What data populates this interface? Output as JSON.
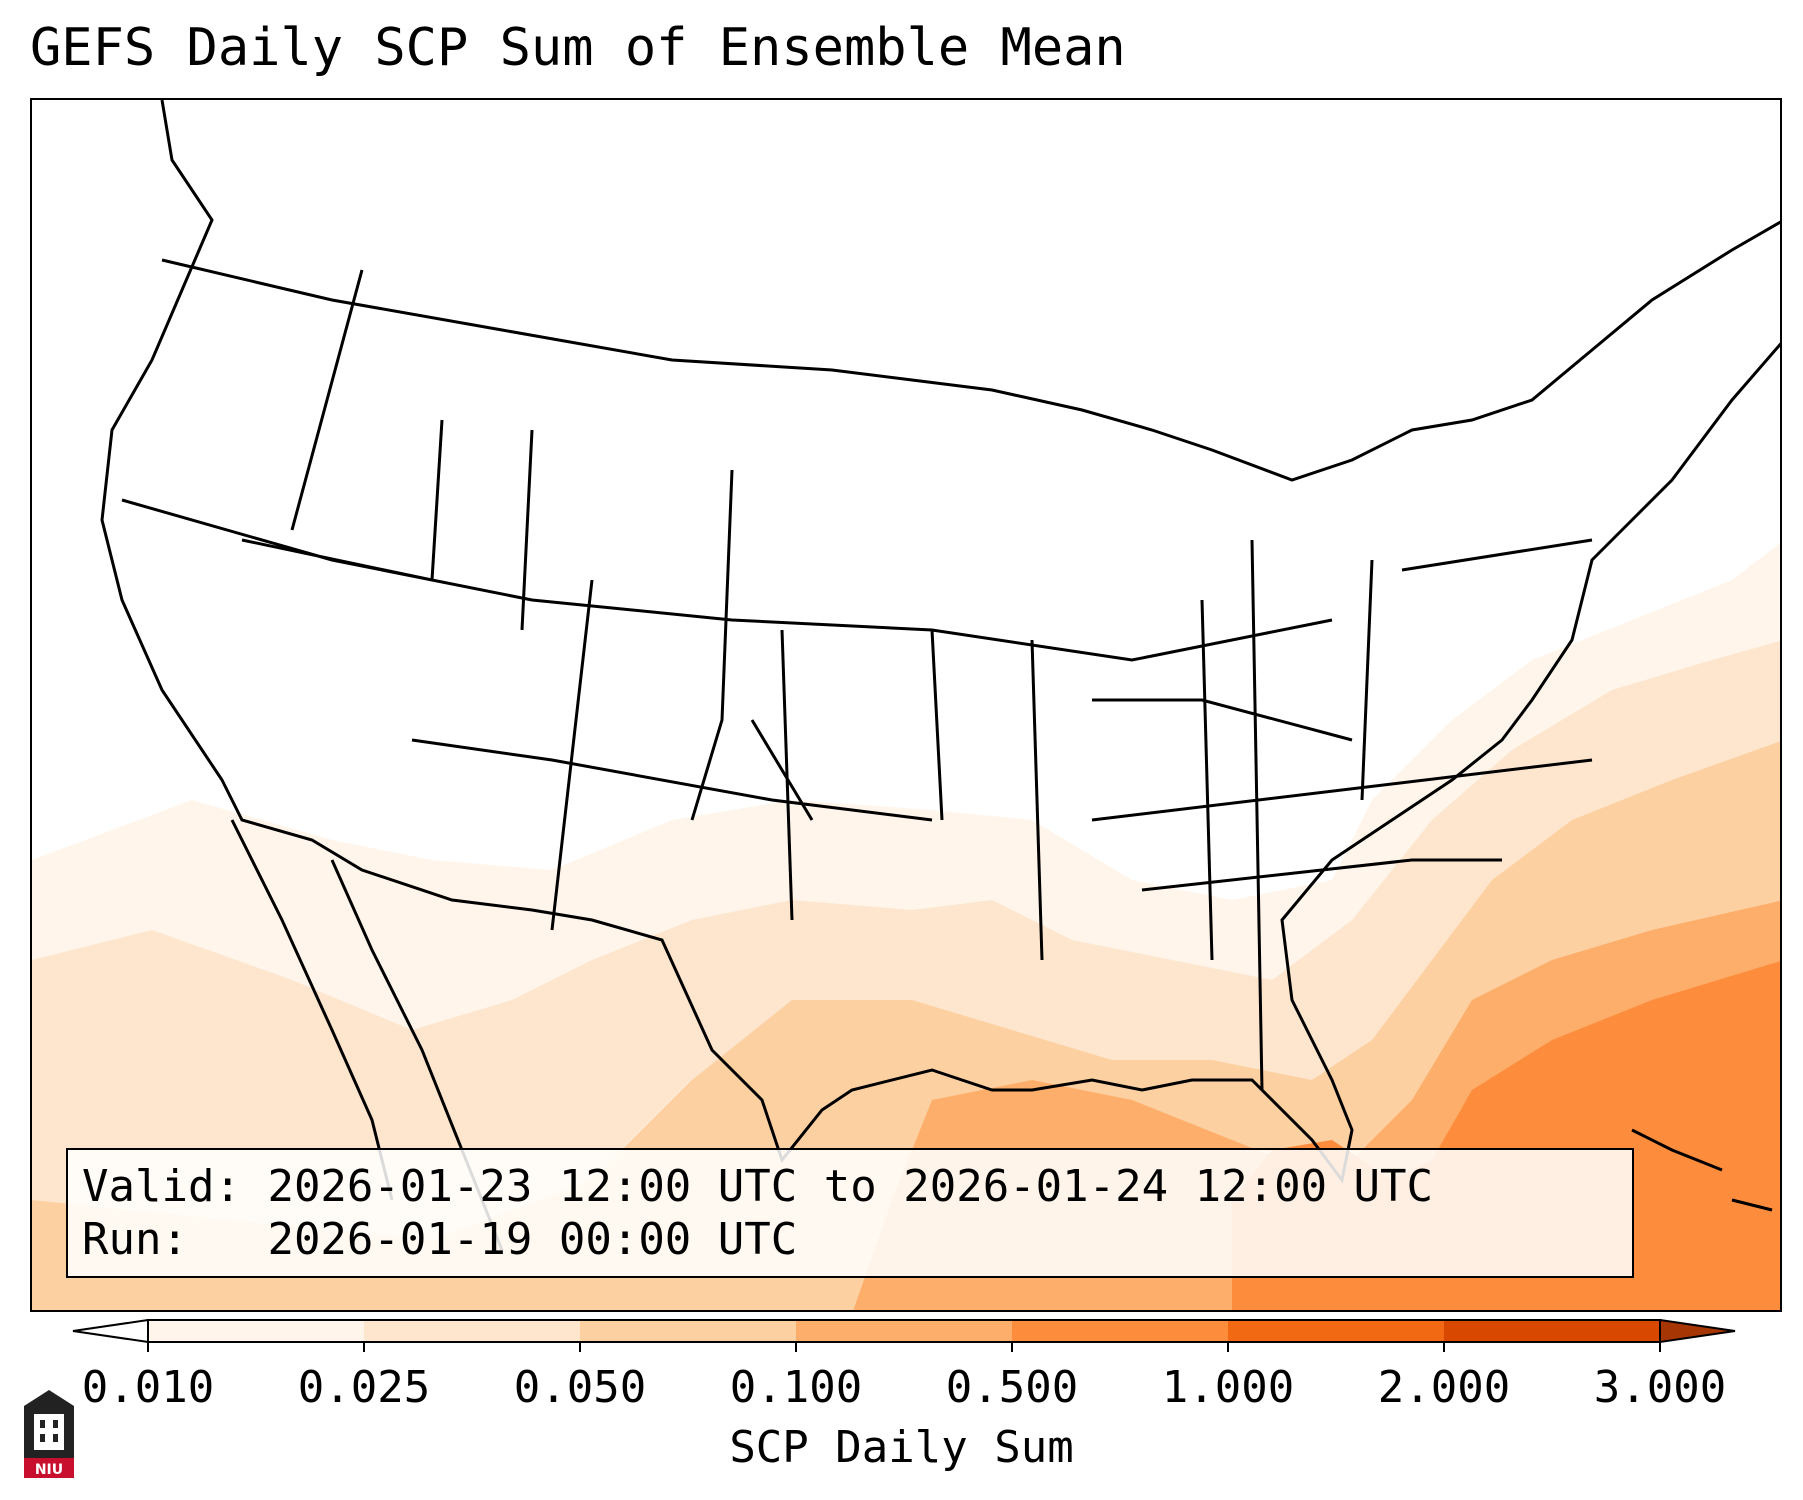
{
  "title": "GEFS Daily SCP Sum of Ensemble Mean",
  "info": {
    "valid_label": "Valid:",
    "valid_value": "2026-01-23 12:00 UTC to 2026-01-24 12:00 UTC",
    "run_label": "Run:",
    "run_value": "2026-01-19 00:00 UTC"
  },
  "colorbar": {
    "label": "SCP Daily Sum",
    "levels": [
      "0.010",
      "0.025",
      "0.050",
      "0.100",
      "0.500",
      "1.000",
      "2.000",
      "3.000"
    ],
    "colors": [
      "#fff5eb",
      "#fee6ce",
      "#fdd0a2",
      "#fdae6b",
      "#fd8d3c",
      "#f16913",
      "#d94801"
    ],
    "extend": "both",
    "under_color": "#ffffff",
    "over_color": "#a63603"
  },
  "logo": {
    "text": "NIU",
    "color": "#c8102e"
  },
  "map": {
    "region": "CONUS",
    "field": "SCP ensemble mean daily sum"
  }
}
